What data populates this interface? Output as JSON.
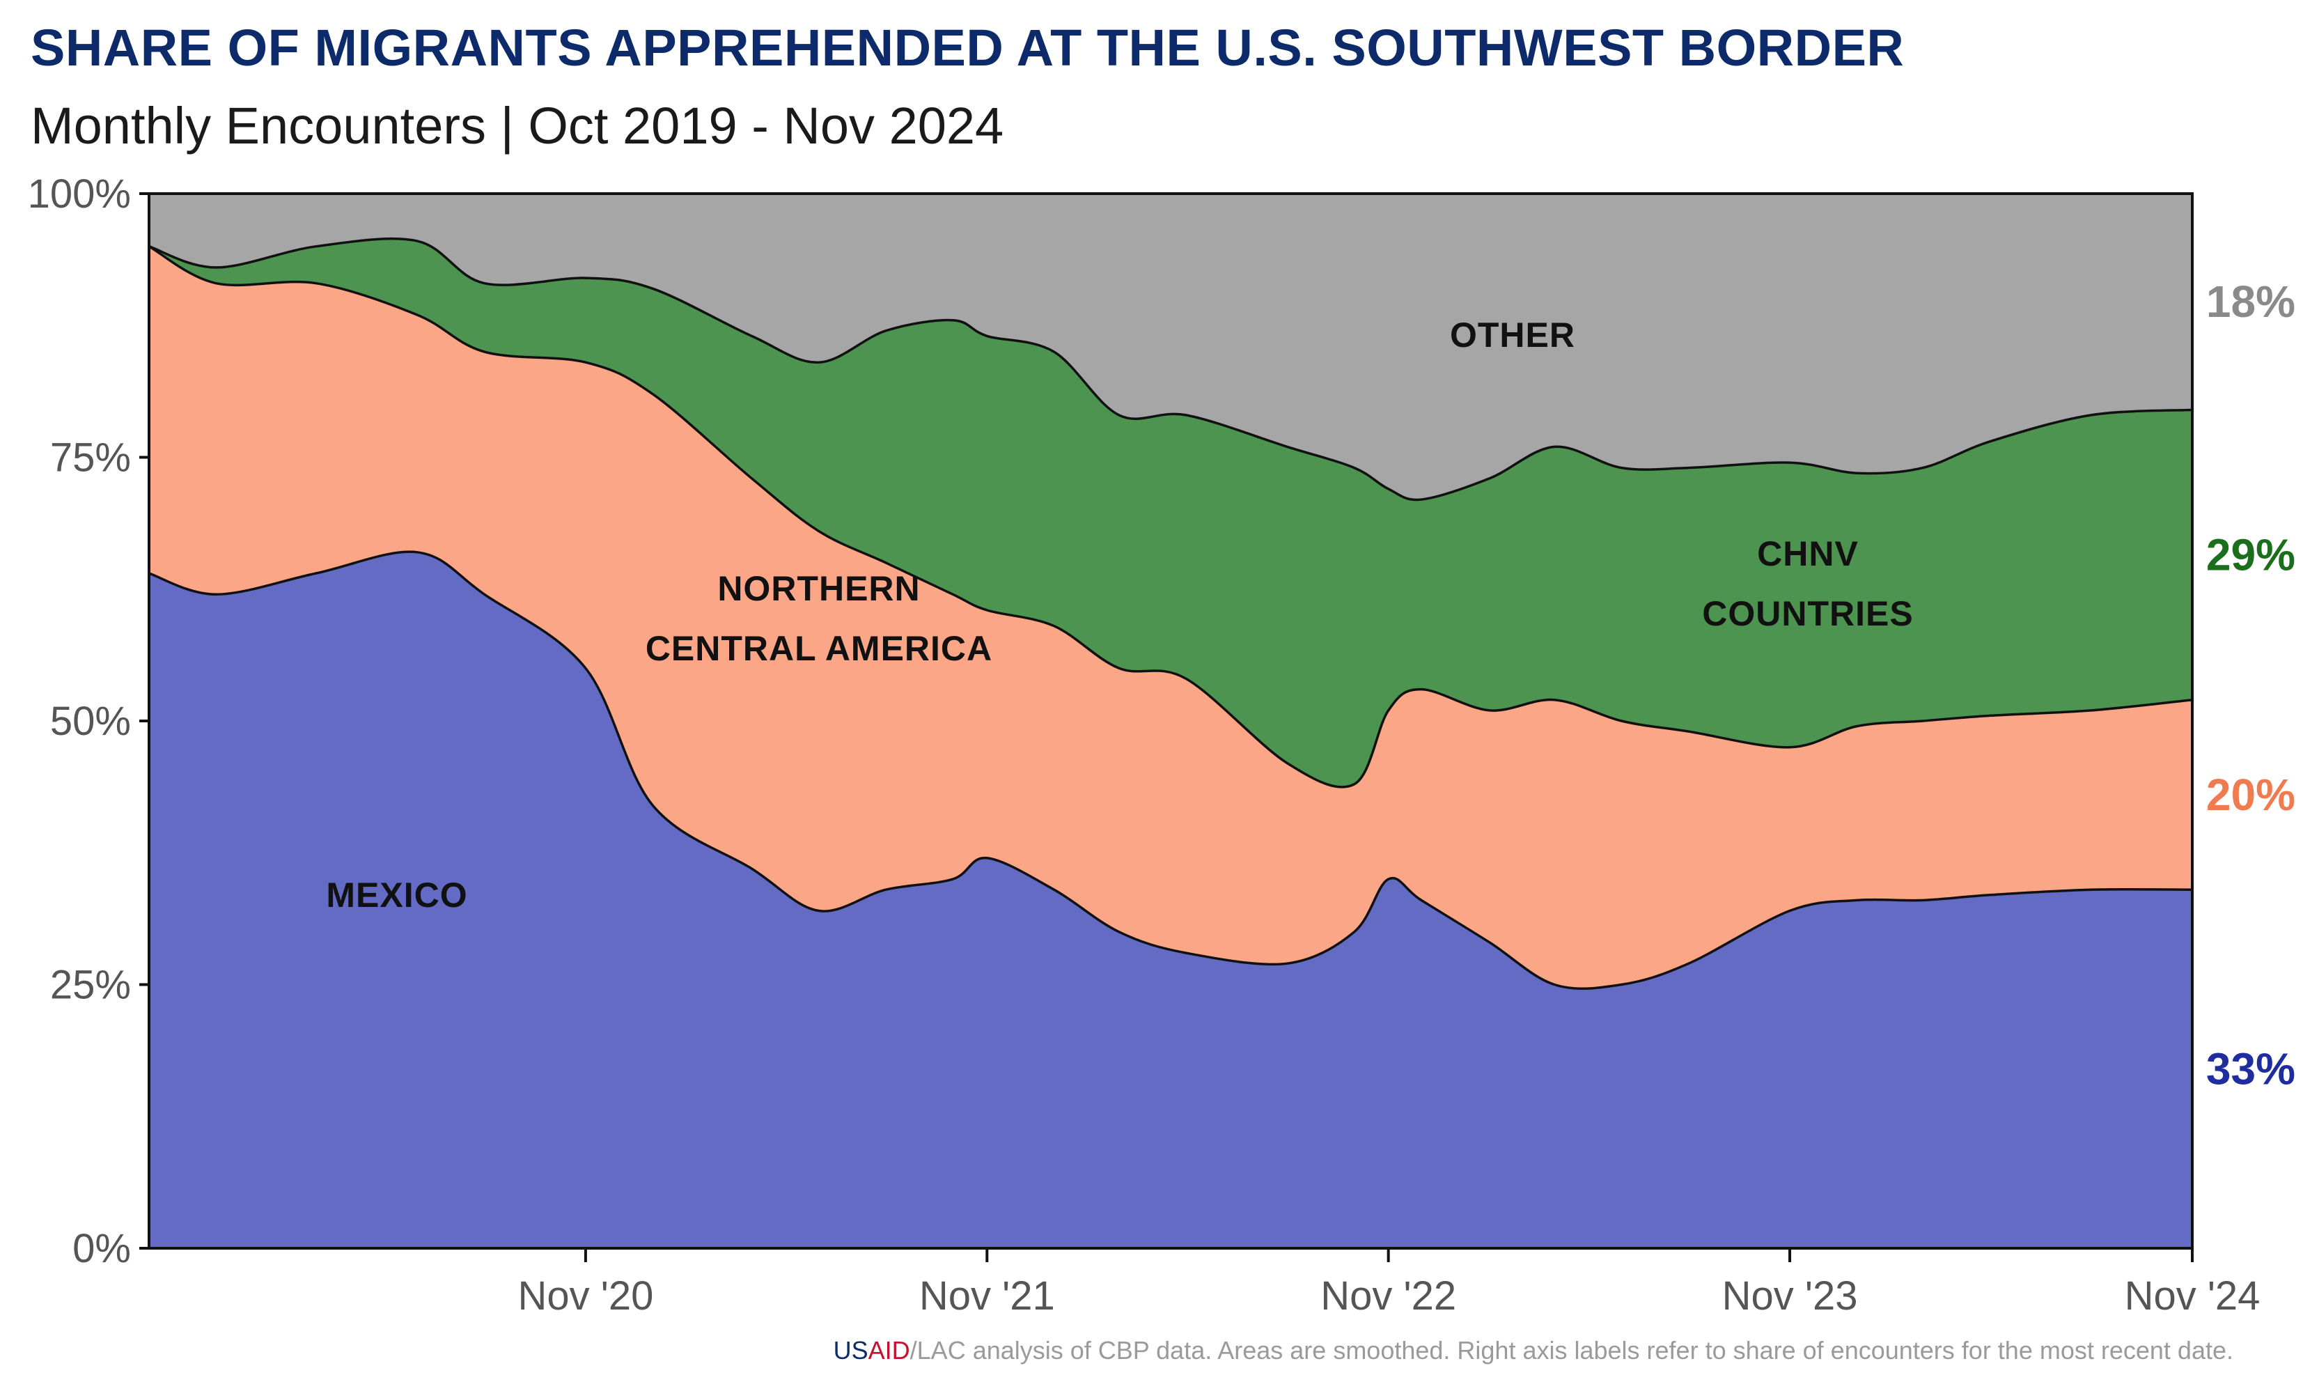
{
  "title": "SHARE OF MIGRANTS APPREHENDED AT THE U.S. SOUTHWEST BORDER",
  "subtitle": "Monthly Encounters | Oct 2019 - Nov 2024",
  "footer": {
    "usaid_us": "US",
    "usaid_aid": "AID",
    "text": "/LAC analysis of CBP data. Areas are smoothed. Right axis labels refer to share of encounters for the most recent date."
  },
  "chart_data": {
    "type": "area",
    "stacked": true,
    "x": [
      "Oct 2019",
      "Dec 2019",
      "Mar 2020",
      "Jun 2020",
      "Aug 2020",
      "Nov 2020",
      "Jan 2021",
      "Apr 2021",
      "Jun 2021",
      "Aug 2021",
      "Oct 2021",
      "Nov 2021",
      "Jan 2022",
      "Mar 2022",
      "May 2022",
      "Aug 2022",
      "Oct 2022",
      "Nov 2022",
      "Dec 2022",
      "Feb 2023",
      "Apr 2023",
      "Jun 2023",
      "Aug 2023",
      "Nov 2023",
      "Jan 2024",
      "Mar 2024",
      "May 2024",
      "Aug 2024",
      "Nov 2024"
    ],
    "x_ticks": [
      "Nov '20",
      "Nov '21",
      "Nov '22",
      "Nov '23",
      "Nov '24"
    ],
    "y_ticks": [
      "0%",
      "25%",
      "50%",
      "75%",
      "100%"
    ],
    "ylim": [
      0,
      100
    ],
    "series": [
      {
        "name": "MEXICO",
        "color": "#636bc4",
        "end_label": "33%",
        "end_label_color": "#1f2d9e",
        "values": [
          64,
          62,
          64,
          66,
          62,
          55,
          42,
          36,
          32,
          34,
          35,
          37,
          34,
          30,
          28,
          27,
          30,
          35,
          33,
          29,
          25,
          25,
          27,
          32,
          33,
          33,
          33.5,
          34,
          34
        ]
      },
      {
        "name": "NORTHERN CENTRAL AMERICA",
        "label_lines": [
          "NORTHERN",
          "CENTRAL AMERICA"
        ],
        "color": "#fca688",
        "end_label": "20%",
        "end_label_color": "#f07b4f",
        "values": [
          31,
          29.5,
          27.5,
          22.5,
          23,
          29,
          39,
          37,
          36,
          31,
          27,
          23.5,
          25,
          25,
          26,
          19,
          14,
          16,
          20,
          22,
          27,
          25,
          22,
          15.5,
          16.5,
          17,
          17,
          17,
          18
        ]
      },
      {
        "name": "CHNV COUNTRIES",
        "label_lines": [
          "CHNV",
          "COUNTRIES"
        ],
        "color": "#4d9450",
        "end_label": "29%",
        "end_label_color": "#1b6e1b",
        "values": [
          0,
          1.5,
          3.5,
          7,
          6.5,
          8,
          10,
          13.5,
          16,
          22,
          26,
          26,
          26,
          24,
          25,
          30,
          30,
          21,
          18,
          22,
          24,
          24,
          25,
          27,
          24,
          24,
          26,
          28,
          27.5
        ]
      },
      {
        "name": "OTHER",
        "color": "#a6a6a6",
        "end_label": "18%",
        "end_label_color": "#8a8a8a",
        "values": [
          5,
          7,
          5,
          4.5,
          8.5,
          8,
          9,
          13.5,
          16,
          13,
          12,
          13.5,
          15,
          21,
          21,
          24,
          26,
          28,
          29,
          27,
          24,
          26,
          26,
          25.5,
          26.5,
          26,
          23.5,
          21,
          20.5
        ]
      }
    ]
  }
}
